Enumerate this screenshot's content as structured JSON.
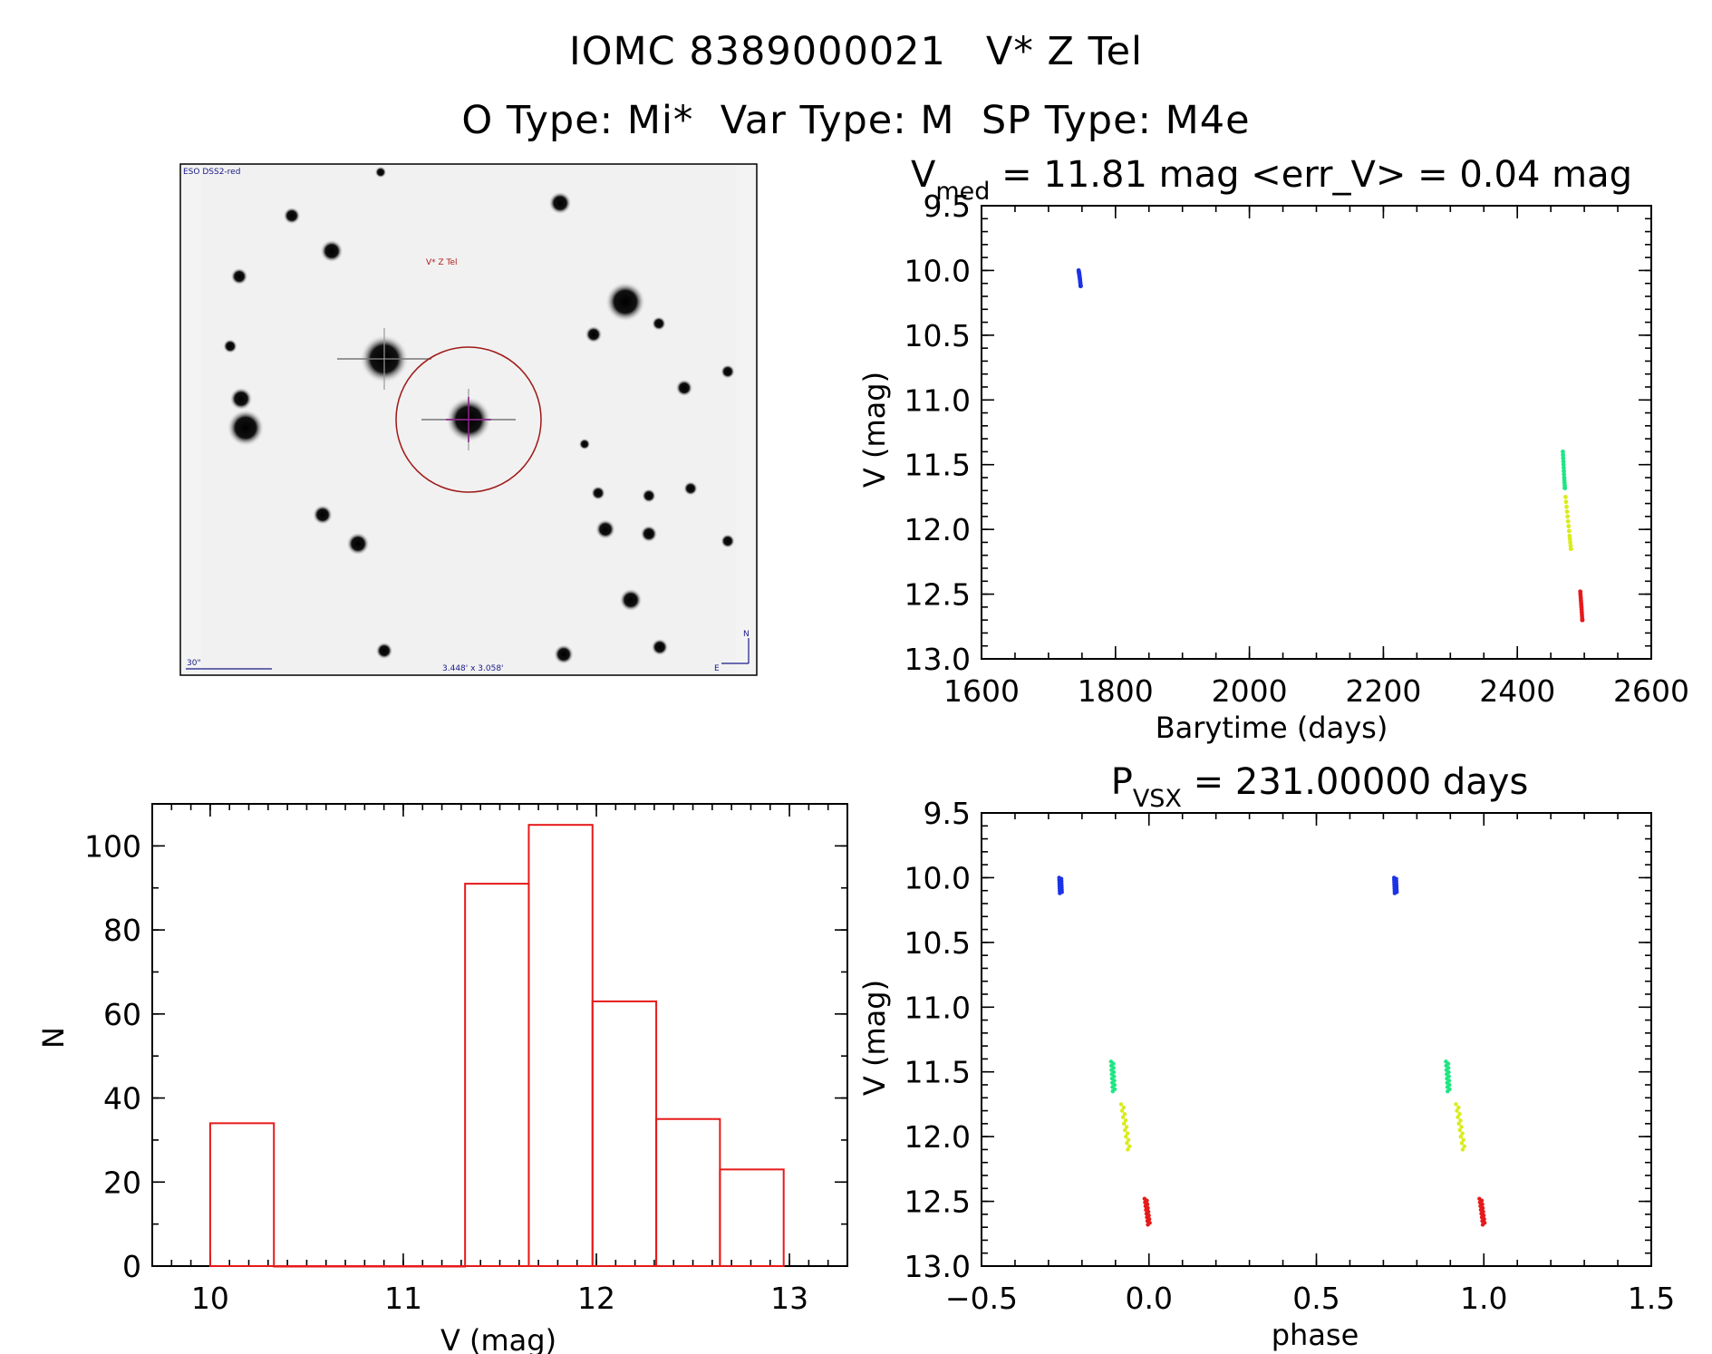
{
  "header": {
    "line1": "IOMC 8389000021   V* Z Tel",
    "line2": "O Type: Mi*  Var Type: M  SP Type: M4e"
  },
  "finder_chart": {
    "survey_label": "ESO DSS2-red",
    "object_label": "V* Z Tel",
    "scale_label": "30\"",
    "fov_label": "3.448' x 3.058'",
    "compass_n": "N",
    "compass_e": "E"
  },
  "colors": {
    "blue": "#1a33e6",
    "green": "#1ee683",
    "yellow": "#d9ec1a",
    "red": "#e61a1a",
    "hist": "#e61a1a",
    "finder_circle": "#a01818",
    "finder_cross": "#8a1a8a"
  },
  "chart_data": [
    {
      "id": "light_curve",
      "type": "scatter",
      "title_main": "V",
      "title_sub": "med",
      "title_rest": " = 11.81 mag <err_V> = 0.04 mag",
      "xlabel": "Barytime (days)",
      "ylabel": "V (mag)",
      "xlim": [
        1600,
        2600
      ],
      "ylim": [
        9.5,
        13.0
      ],
      "y_inverted": true,
      "xticks": [
        1600,
        1800,
        2000,
        2200,
        2400,
        2600
      ],
      "xtick_labels": [
        "1600",
        "1800",
        "2000",
        "2200",
        "2400",
        "2600"
      ],
      "yticks": [
        9.5,
        10.0,
        10.5,
        11.0,
        11.5,
        12.0,
        12.5,
        13.0
      ],
      "ytick_labels": [
        "9.5",
        "10.0",
        "10.5",
        "11.0",
        "11.5",
        "12.0",
        "12.5",
        "13.0"
      ],
      "series": [
        {
          "color": "blue",
          "x": [
            1745,
            1746,
            1747,
            1748
          ],
          "y": [
            10.0,
            10.03,
            10.07,
            10.12
          ]
        },
        {
          "color": "green",
          "x": [
            2468,
            2469,
            2470,
            2471
          ],
          "y": [
            11.4,
            11.5,
            11.6,
            11.68
          ]
        },
        {
          "color": "yellow",
          "x": [
            2472,
            2475,
            2478,
            2480
          ],
          "y": [
            11.75,
            11.9,
            12.05,
            12.15
          ]
        },
        {
          "color": "red",
          "x": [
            2494,
            2495,
            2496,
            2497
          ],
          "y": [
            12.48,
            12.55,
            12.62,
            12.7
          ]
        }
      ]
    },
    {
      "id": "histogram",
      "type": "bar",
      "xlabel": "V (mag)",
      "ylabel": "N",
      "xlim": [
        9.7,
        13.3
      ],
      "ylim": [
        0,
        110
      ],
      "xticks": [
        10,
        11,
        12,
        13
      ],
      "xtick_labels": [
        "10",
        "11",
        "12",
        "13"
      ],
      "yticks": [
        0,
        20,
        40,
        60,
        80,
        100
      ],
      "ytick_labels": [
        "0",
        "20",
        "40",
        "60",
        "80",
        "100"
      ],
      "bin_edges": [
        10.0,
        10.33,
        10.66,
        10.99,
        11.32,
        11.65,
        11.98,
        12.31,
        12.64,
        12.97
      ],
      "values": [
        34,
        0,
        0,
        0,
        91,
        105,
        63,
        35,
        23
      ]
    },
    {
      "id": "phased_curve",
      "type": "scatter",
      "title_main": "P",
      "title_sub": "VSX",
      "title_rest": " = 231.00000 days",
      "xlabel": "phase",
      "ylabel": "V (mag)",
      "xlim": [
        -0.5,
        1.5
      ],
      "ylim": [
        9.5,
        13.0
      ],
      "y_inverted": true,
      "xticks": [
        -0.5,
        0.0,
        0.5,
        1.0,
        1.5
      ],
      "xtick_labels": [
        "−0.5",
        "0.0",
        "0.5",
        "1.0",
        "1.5"
      ],
      "yticks": [
        9.5,
        10.0,
        10.5,
        11.0,
        11.5,
        12.0,
        12.5,
        13.0
      ],
      "ytick_labels": [
        "9.5",
        "10.0",
        "10.5",
        "11.0",
        "11.5",
        "12.0",
        "12.5",
        "13.0"
      ],
      "series": [
        {
          "color": "blue",
          "x": [
            -0.265,
            -0.263,
            0.735,
            0.737
          ],
          "y": [
            10.0,
            10.12,
            10.0,
            10.12
          ]
        },
        {
          "color": "green",
          "x": [
            -0.11,
            -0.105,
            0.89,
            0.895
          ],
          "y": [
            11.42,
            11.65,
            11.42,
            11.65
          ]
        },
        {
          "color": "yellow",
          "x": [
            -0.08,
            -0.06,
            0.92,
            0.94
          ],
          "y": [
            11.75,
            12.1,
            11.75,
            12.1
          ]
        },
        {
          "color": "red",
          "x": [
            -0.01,
            0.0,
            0.99,
            1.0
          ],
          "y": [
            12.48,
            12.68,
            12.48,
            12.68
          ]
        }
      ]
    }
  ]
}
